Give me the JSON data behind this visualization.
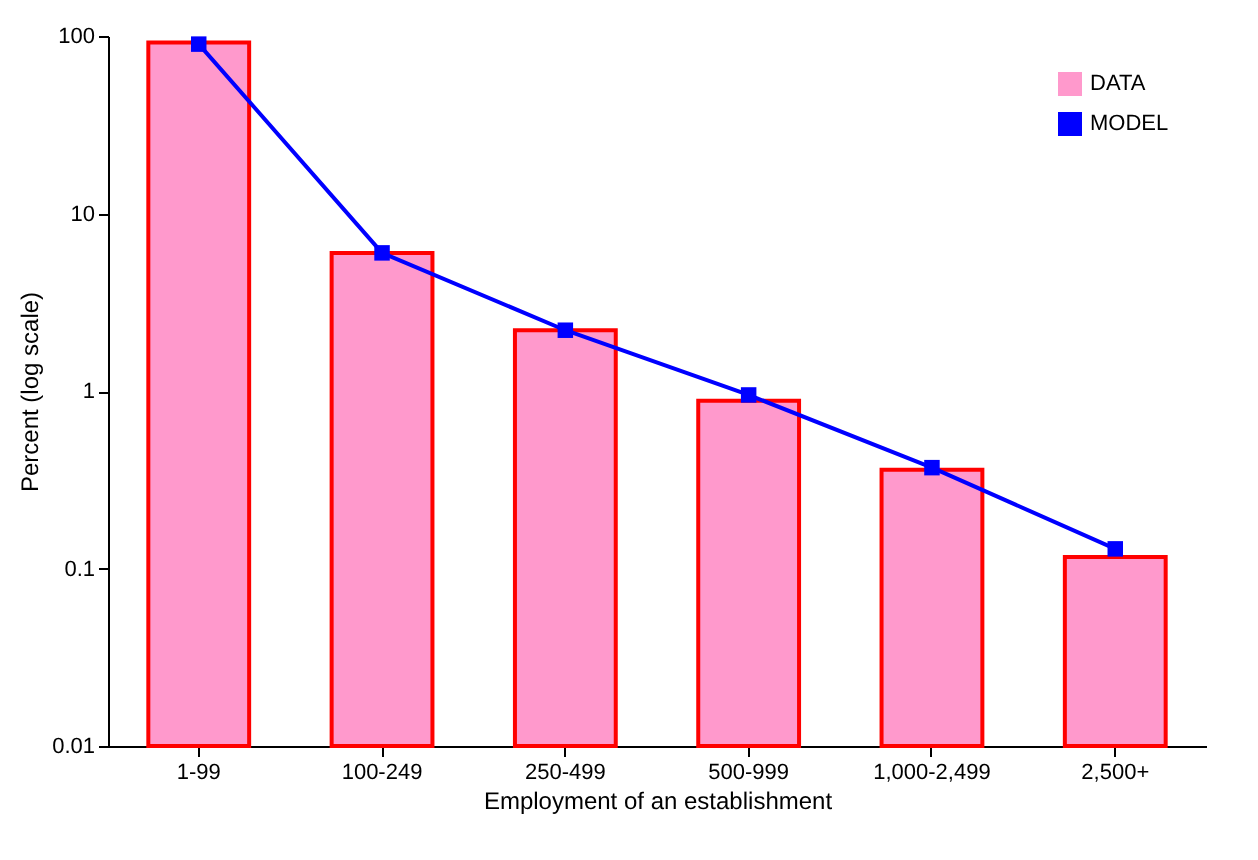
{
  "chart_data": {
    "type": "bar",
    "xlabel": "Employment of an establishment",
    "ylabel": "Percent (log scale)",
    "categories": [
      "1-99",
      "100-249",
      "250-499",
      "500-999",
      "1,000-2,499",
      "2,500+"
    ],
    "series": [
      {
        "name": "DATA",
        "color": "#ff99cc",
        "values": [
          92,
          6.0,
          2.2,
          0.88,
          0.36,
          0.116
        ]
      },
      {
        "name": "MODEL",
        "type": "line",
        "color": "#0000ff",
        "values": [
          90,
          6.0,
          2.2,
          0.95,
          0.37,
          0.129
        ],
        "marker": "square"
      }
    ],
    "log": true,
    "ylim": [
      0.01,
      100
    ],
    "yticks": [
      0.01,
      0.1,
      1,
      10,
      100
    ],
    "grid": false,
    "legend": "top right"
  }
}
